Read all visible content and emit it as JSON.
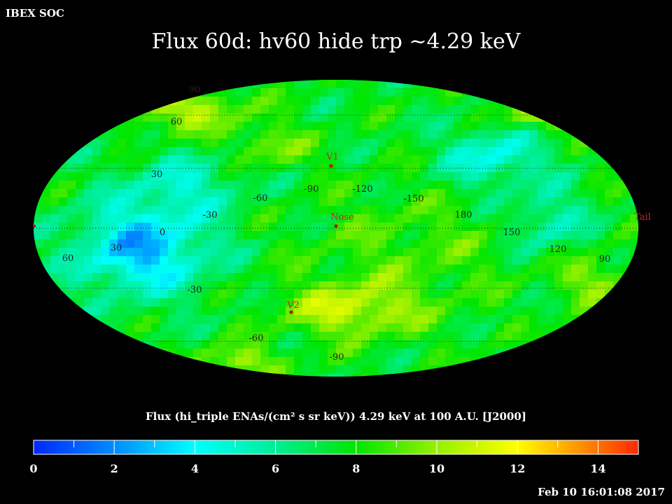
{
  "header": {
    "app_name": "IBEX SOC"
  },
  "title": "Flux   60d: hv60 hide trp ~4.29 keV",
  "colorbar": {
    "label": "Flux (hi_triple ENAs/(cm² s sr keV))  4.29 keV at 100 A.U. [J2000]",
    "ticks": [
      "0",
      "2",
      "4",
      "6",
      "8",
      "10",
      "12",
      "14"
    ],
    "min": 0,
    "max": 15
  },
  "timestamp": "Feb 10 16:01:08 2017",
  "map": {
    "projection": "mollweide",
    "center_longitude": 105,
    "longitude_labels": [
      "-30",
      "-60",
      "-90",
      "-120",
      "-150",
      "180",
      "150",
      "120",
      "90"
    ],
    "latitude_labels": [
      "90",
      "60",
      "30",
      "0",
      "30",
      "-30",
      "-60",
      "-90",
      "60"
    ],
    "markers": [
      {
        "name": "V1",
        "label": "V1"
      },
      {
        "name": "Nose",
        "label": "Nose"
      },
      {
        "name": "V2",
        "label": "V2"
      },
      {
        "name": "Tail",
        "label": "Tail"
      }
    ],
    "colors": {
      "grid": "#222222",
      "marker": "#cc0000",
      "marker_text": "#cc2222",
      "axis_text": "#222222"
    }
  }
}
